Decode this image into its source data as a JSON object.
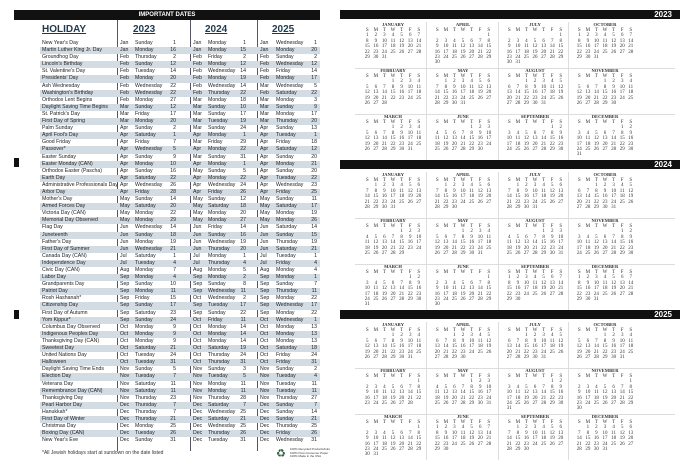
{
  "header": {
    "title": "IMPORTANT DATES",
    "holiday_label": "HOLIDAY",
    "years": [
      "2023",
      "2024",
      "2025"
    ]
  },
  "holidays": [
    [
      "New Year's Day",
      "Jan",
      "Sunday",
      "1",
      "Jan",
      "Monday",
      "1",
      "Jan",
      "Wednesday",
      "1"
    ],
    [
      "Martin Luther King Jr. Day",
      "Jan",
      "Monday",
      "16",
      "Jan",
      "Monday",
      "15",
      "Jan",
      "Monday",
      "20"
    ],
    [
      "Groundhog Day",
      "Feb",
      "Thursday",
      "2",
      "Feb",
      "Friday",
      "2",
      "Feb",
      "Sunday",
      "2"
    ],
    [
      "Lincoln's Birthday",
      "Feb",
      "Sunday",
      "12",
      "Feb",
      "Monday",
      "12",
      "Feb",
      "Wednesday",
      "12"
    ],
    [
      "St. Valentine's Day",
      "Feb",
      "Tuesday",
      "14",
      "Feb",
      "Wednesday",
      "14",
      "Feb",
      "Friday",
      "14"
    ],
    [
      "Presidents' Day",
      "Feb",
      "Monday",
      "20",
      "Feb",
      "Monday",
      "19",
      "Feb",
      "Monday",
      "17"
    ],
    [
      "Ash Wednesday",
      "Feb",
      "Wednesday",
      "22",
      "Feb",
      "Wednesday",
      "14",
      "Mar",
      "Wednesday",
      "5"
    ],
    [
      "Washington's Birthday",
      "Feb",
      "Wednesday",
      "22",
      "Feb",
      "Thursday",
      "22",
      "Feb",
      "Saturday",
      "22"
    ],
    [
      "Orthodox Lent Begins",
      "Feb",
      "Monday",
      "27",
      "Mar",
      "Monday",
      "18",
      "Mar",
      "Monday",
      "3"
    ],
    [
      "Daylight Saving Time Begins",
      "Mar",
      "Sunday",
      "12",
      "Mar",
      "Sunday",
      "10",
      "Mar",
      "Sunday",
      "9"
    ],
    [
      "St. Patrick's Day",
      "Mar",
      "Friday",
      "17",
      "Mar",
      "Sunday",
      "17",
      "Mar",
      "Monday",
      "17"
    ],
    [
      "First Day of Spring",
      "Mar",
      "Monday",
      "20",
      "Mar",
      "Tuesday",
      "19",
      "Mar",
      "Thursday",
      "20"
    ],
    [
      "Palm Sunday",
      "Apr",
      "Sunday",
      "2",
      "Mar",
      "Sunday",
      "24",
      "Apr",
      "Sunday",
      "13"
    ],
    [
      "April Fool's Day",
      "Apr",
      "Saturday",
      "1",
      "Apr",
      "Monday",
      "1",
      "Apr",
      "Tuesday",
      "1"
    ],
    [
      "Good Friday",
      "Apr",
      "Friday",
      "7",
      "Mar",
      "Friday",
      "29",
      "Apr",
      "Friday",
      "18"
    ],
    [
      "Passover*",
      "Apr",
      "Wednesday",
      "5",
      "Apr",
      "Monday",
      "22",
      "Apr",
      "Saturday",
      "12"
    ],
    [
      "Easter Sunday",
      "Apr",
      "Sunday",
      "9",
      "Mar",
      "Sunday",
      "31",
      "Apr",
      "Sunday",
      "20"
    ],
    [
      "Easter Monday (CAN)",
      "Apr",
      "Monday",
      "10",
      "Apr",
      "Monday",
      "1",
      "Apr",
      "Monday",
      "21"
    ],
    [
      "Orthodox Easter (Pascha)",
      "Apr",
      "Sunday",
      "16",
      "May",
      "Sunday",
      "5",
      "Apr",
      "Sunday",
      "20"
    ],
    [
      "Earth Day",
      "Apr",
      "Saturday",
      "22",
      "Apr",
      "Monday",
      "22",
      "Apr",
      "Tuesday",
      "22"
    ],
    [
      "Administrative Professionals Day",
      "Apr",
      "Wednesday",
      "26",
      "Apr",
      "Wednesday",
      "24",
      "Apr",
      "Wednesday",
      "23"
    ],
    [
      "Arbor Day",
      "Apr",
      "Friday",
      "28",
      "Apr",
      "Friday",
      "26",
      "Apr",
      "Friday",
      "25"
    ],
    [
      "Mother's Day",
      "May",
      "Sunday",
      "14",
      "May",
      "Sunday",
      "12",
      "May",
      "Sunday",
      "11"
    ],
    [
      "Armed Forces Day",
      "May",
      "Saturday",
      "20",
      "May",
      "Saturday",
      "18",
      "May",
      "Saturday",
      "17"
    ],
    [
      "Victoria Day (CAN)",
      "May",
      "Monday",
      "22",
      "May",
      "Monday",
      "20",
      "May",
      "Monday",
      "19"
    ],
    [
      "Memorial Day Observed",
      "May",
      "Monday",
      "29",
      "May",
      "Monday",
      "27",
      "May",
      "Monday",
      "26"
    ],
    [
      "Flag Day",
      "Jun",
      "Wednesday",
      "14",
      "Jun",
      "Friday",
      "14",
      "Jun",
      "Saturday",
      "14"
    ],
    [
      "Juneteenth",
      "Jun",
      "Sunday",
      "18",
      "Jun",
      "Sunday",
      "16",
      "Jun",
      "Sunday",
      "15"
    ],
    [
      "Father's Day",
      "Jun",
      "Monday",
      "19",
      "Jun",
      "Wednesday",
      "19",
      "Jun",
      "Thursday",
      "19"
    ],
    [
      "First Day of Summer",
      "Jun",
      "Wednesday",
      "21",
      "Jun",
      "Thursday",
      "20",
      "Jun",
      "Saturday",
      "21"
    ],
    [
      "Canada Day (CAN)",
      "Jul",
      "Saturday",
      "1",
      "Jul",
      "Monday",
      "1",
      "Jul",
      "Tuesday",
      "1"
    ],
    [
      "Independence Day",
      "Jul",
      "Tuesday",
      "4",
      "Jul",
      "Thursday",
      "4",
      "Jul",
      "Friday",
      "4"
    ],
    [
      "Civic Day (CAN)",
      "Aug",
      "Monday",
      "7",
      "Aug",
      "Monday",
      "5",
      "Aug",
      "Monday",
      "4"
    ],
    [
      "Labor Day",
      "Sep",
      "Monday",
      "4",
      "Sep",
      "Monday",
      "2",
      "Sep",
      "Monday",
      "1"
    ],
    [
      "Grandparents Day",
      "Sep",
      "Sunday",
      "10",
      "Sep",
      "Sunday",
      "8",
      "Sep",
      "Sunday",
      "7"
    ],
    [
      "Patriot Day",
      "Sep",
      "Monday",
      "11",
      "Sep",
      "Wednesday",
      "11",
      "Sep",
      "Thursday",
      "11"
    ],
    [
      "Rosh Hashanah*",
      "Sep",
      "Friday",
      "15",
      "Oct",
      "Wednesday",
      "2",
      "Sep",
      "Monday",
      "22"
    ],
    [
      "Citizenship Day",
      "Sep",
      "Sunday",
      "17",
      "Sep",
      "Tuesday",
      "17",
      "Sep",
      "Wednesday",
      "17"
    ],
    [
      "First Day of Autumn",
      "Sep",
      "Saturday",
      "23",
      "Sep",
      "Sunday",
      "22",
      "Sep",
      "Monday",
      "22"
    ],
    [
      "Yom Kippur*",
      "Sep",
      "Sunday",
      "24",
      "Oct",
      "Friday",
      "11",
      "Oct",
      "Wednesday",
      "1"
    ],
    [
      "Columbus Day Observed",
      "Oct",
      "Monday",
      "9",
      "Oct",
      "Monday",
      "14",
      "Oct",
      "Monday",
      "13"
    ],
    [
      "Indigenous Peoples Day",
      "Oct",
      "Monday",
      "9",
      "Oct",
      "Monday",
      "14",
      "Oct",
      "Monday",
      "13"
    ],
    [
      "Thanksgiving Day (CAN)",
      "Oct",
      "Monday",
      "9",
      "Oct",
      "Monday",
      "14",
      "Oct",
      "Monday",
      "13"
    ],
    [
      "Sweetest Day",
      "Oct",
      "Saturday",
      "21",
      "Oct",
      "Saturday",
      "19",
      "Oct",
      "Saturday",
      "18"
    ],
    [
      "United Nations Day",
      "Oct",
      "Tuesday",
      "24",
      "Oct",
      "Thursday",
      "24",
      "Oct",
      "Friday",
      "24"
    ],
    [
      "Halloween",
      "Oct",
      "Tuesday",
      "31",
      "Oct",
      "Thursday",
      "31",
      "Oct",
      "Friday",
      "31"
    ],
    [
      "Daylight Saving Time Ends",
      "Nov",
      "Sunday",
      "5",
      "Nov",
      "Sunday",
      "3",
      "Nov",
      "Sunday",
      "2"
    ],
    [
      "Election Day",
      "Nov",
      "Tuesday",
      "7",
      "Nov",
      "Tuesday",
      "5",
      "Nov",
      "Tuesday",
      "4"
    ],
    [
      "Veterans Day",
      "Nov",
      "Saturday",
      "11",
      "Nov",
      "Monday",
      "11",
      "Nov",
      "Tuesday",
      "11"
    ],
    [
      "Remembrance Day (CAN)",
      "Nov",
      "Saturday",
      "11",
      "Nov",
      "Monday",
      "11",
      "Nov",
      "Tuesday",
      "11"
    ],
    [
      "Thanksgiving Day",
      "Nov",
      "Thursday",
      "23",
      "Nov",
      "Thursday",
      "28",
      "Nov",
      "Thursday",
      "27"
    ],
    [
      "Pearl Harbor Day",
      "Dec",
      "Thursday",
      "7",
      "Dec",
      "Saturday",
      "7",
      "Dec",
      "Sunday",
      "7"
    ],
    [
      "Hanukkah*",
      "Dec",
      "Thursday",
      "7",
      "Dec",
      "Wednesday",
      "25",
      "Dec",
      "Sunday",
      "14"
    ],
    [
      "First Day of Winter",
      "Dec",
      "Thursday",
      "21",
      "Dec",
      "Saturday",
      "21",
      "Dec",
      "Sunday",
      "21"
    ],
    [
      "Christmas Day",
      "Dec",
      "Monday",
      "25",
      "Dec",
      "Wednesday",
      "25",
      "Dec",
      "Thursday",
      "25"
    ],
    [
      "Boxing Day (CAN)",
      "Dec",
      "Tuesday",
      "26",
      "Dec",
      "Thursday",
      "26",
      "Dec",
      "Friday",
      "26"
    ],
    [
      "New Year's Eve",
      "Dec",
      "Sunday",
      "31",
      "Dec",
      "Tuesday",
      "31",
      "Dec",
      "Wednesday",
      "31"
    ]
  ],
  "footer": {
    "note": "*All Jewish holidays start at sundown on the date listed",
    "fine_print": [
      "100% Recycled Products/Inks",
      "100% Post-Consumer Paper",
      "100% Made in the USA"
    ],
    "logo": "recycle-icon"
  },
  "calendar": {
    "years": [
      "2023",
      "2024",
      "2025"
    ],
    "months": [
      "JANUARY",
      "FEBRUARY",
      "MARCH",
      "APRIL",
      "MAY",
      "JUNE",
      "JULY",
      "AUGUST",
      "SEPTEMBER",
      "OCTOBER",
      "NOVEMBER",
      "DECEMBER"
    ],
    "weekdays": [
      "S",
      "M",
      "T",
      "W",
      "T",
      "F",
      "S"
    ]
  },
  "colors": {
    "row_shade": "#d3dce3",
    "bar": "#111111",
    "heading": "#1f3a4d"
  }
}
